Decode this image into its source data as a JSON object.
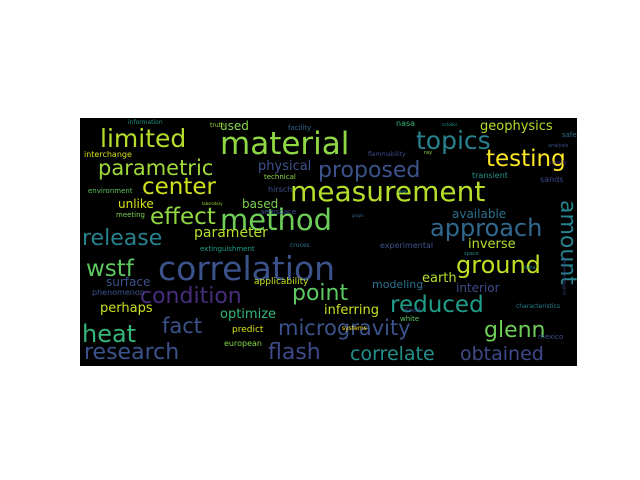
{
  "word_cloud": {
    "background": "#000000",
    "words": [
      {
        "text": "correlation",
        "color": "#3b528b"
      },
      {
        "text": "measurement",
        "color": "#b5de2b"
      },
      {
        "text": "material",
        "color": "#8fd744"
      },
      {
        "text": "method",
        "color": "#6ece58"
      },
      {
        "text": "microgravity",
        "color": "#3b528b"
      },
      {
        "text": "limited",
        "color": "#b5de2b"
      },
      {
        "text": "topics",
        "color": "#26828e"
      },
      {
        "text": "testing",
        "color": "#fde725"
      },
      {
        "text": "proposed",
        "color": "#3b528b"
      },
      {
        "text": "parametric",
        "color": "#a0da39"
      },
      {
        "text": "center",
        "color": "#d0e11c"
      },
      {
        "text": "effect",
        "color": "#90d743"
      },
      {
        "text": "approach",
        "color": "#31688e"
      },
      {
        "text": "release",
        "color": "#26828e"
      },
      {
        "text": "wstf",
        "color": "#5ec962"
      },
      {
        "text": "ground",
        "color": "#c2df23"
      },
      {
        "text": "condition",
        "color": "#472d7b"
      },
      {
        "text": "point",
        "color": "#5ec962"
      },
      {
        "text": "reduced",
        "color": "#1f9e89"
      },
      {
        "text": "heat",
        "color": "#35b779"
      },
      {
        "text": "fact",
        "color": "#3b528b"
      },
      {
        "text": "glenn",
        "color": "#6ece58"
      },
      {
        "text": "research",
        "color": "#3b528b"
      },
      {
        "text": "flash",
        "color": "#3e4a89"
      },
      {
        "text": "correlate",
        "color": "#21918c"
      },
      {
        "text": "obtained",
        "color": "#3e4a89"
      },
      {
        "text": "amount",
        "color": "#26828e",
        "vertical": true
      },
      {
        "text": "parameter",
        "color": "#b5de2b"
      },
      {
        "text": "inverse",
        "color": "#b5de2b"
      },
      {
        "text": "inferring",
        "color": "#c8e020"
      },
      {
        "text": "available",
        "color": "#2c728e"
      },
      {
        "text": "geophysics",
        "color": "#b5de2b"
      },
      {
        "text": "used",
        "color": "#86d549"
      },
      {
        "text": "physical",
        "color": "#3b528b"
      },
      {
        "text": "based",
        "color": "#7ad151"
      },
      {
        "text": "unlike",
        "color": "#d8e219"
      },
      {
        "text": "optimize",
        "color": "#35b779"
      },
      {
        "text": "perhaps",
        "color": "#c8e020"
      },
      {
        "text": "surface",
        "color": "#3b528b"
      },
      {
        "text": "interior",
        "color": "#3e4a89"
      },
      {
        "text": "earth",
        "color": "#b5de2b"
      },
      {
        "text": "modeling",
        "color": "#2c728e"
      },
      {
        "text": "applicability",
        "color": "#c8e020"
      },
      {
        "text": "phenomenon",
        "color": "#3b528b"
      },
      {
        "text": "predict",
        "color": "#d8e219"
      },
      {
        "text": "european",
        "color": "#86d549"
      },
      {
        "text": "interchange",
        "color": "#d8e219"
      },
      {
        "text": "information",
        "color": "#21918c"
      },
      {
        "text": "facility",
        "color": "#31688e"
      },
      {
        "text": "technical",
        "color": "#90d743"
      },
      {
        "text": "hirsch",
        "color": "#3b528b"
      },
      {
        "text": "aerospace",
        "color": "#3b528b"
      },
      {
        "text": "cruces",
        "color": "#2c728e"
      },
      {
        "text": "experimental",
        "color": "#3b528b"
      },
      {
        "text": "extinguishment",
        "color": "#1f9e89"
      },
      {
        "text": "environment",
        "color": "#5ec962"
      },
      {
        "text": "meeting",
        "color": "#7ad151"
      },
      {
        "text": "laboratory",
        "color": "#a0da39"
      },
      {
        "text": "truth",
        "color": "#a0da39"
      },
      {
        "text": "nasa",
        "color": "#35b779"
      },
      {
        "text": "flammability",
        "color": "#3e4a89"
      },
      {
        "text": "transient",
        "color": "#21918c"
      },
      {
        "text": "safety",
        "color": "#2c728e"
      },
      {
        "text": "analysis",
        "color": "#3b528b"
      },
      {
        "text": "mostly",
        "color": "#472d7b"
      },
      {
        "text": "sands",
        "color": "#3e4a89"
      },
      {
        "text": "data",
        "color": "#21918c"
      },
      {
        "text": "mexico",
        "color": "#3b528b"
      },
      {
        "text": "white",
        "color": "#5ec962"
      },
      {
        "text": "david",
        "color": "#3b528b"
      },
      {
        "text": "systems",
        "color": "#fde725"
      },
      {
        "text": "characteristics",
        "color": "#26828e"
      },
      {
        "text": "phenomenological",
        "color": "#3e4a89",
        "vertical": true
      },
      {
        "text": "space",
        "color": "#26828e"
      },
      {
        "text": "october",
        "color": "#21918c"
      },
      {
        "text": "use",
        "color": "#21918c"
      },
      {
        "text": "ray",
        "color": "#8fd744"
      },
      {
        "text": "graph",
        "color": "#31688e"
      }
    ]
  }
}
